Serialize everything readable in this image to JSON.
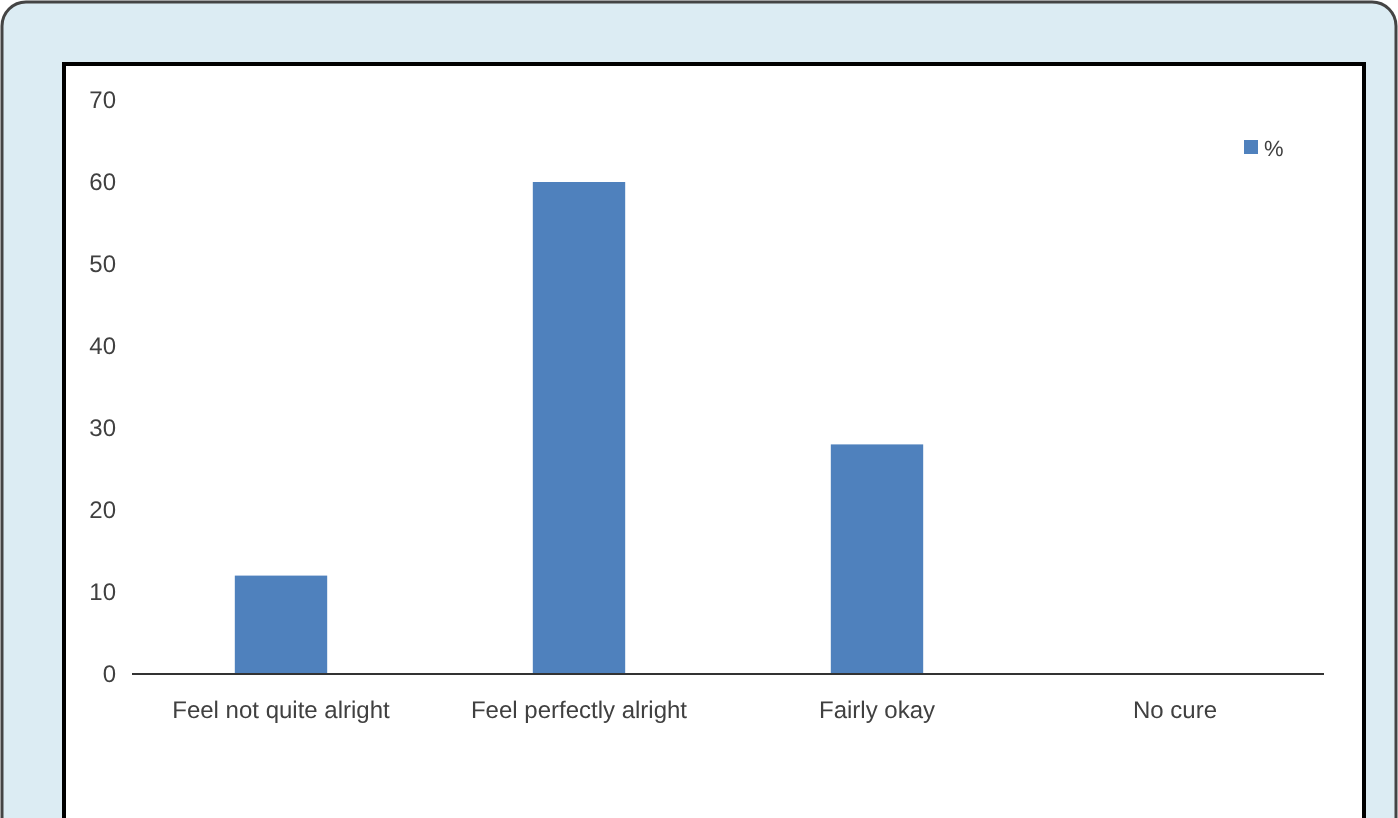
{
  "chart_data": {
    "type": "bar",
    "categories": [
      "Feel not quite alright",
      "Feel perfectly alright",
      "Fairly okay",
      "No cure"
    ],
    "series": [
      {
        "name": "%",
        "color": "#4f81bd",
        "values": [
          12,
          60,
          28,
          0
        ]
      }
    ],
    "ylim": [
      0,
      70
    ],
    "yticks": [
      0,
      10,
      20,
      30,
      40,
      50,
      60,
      70
    ],
    "grid": false,
    "legend": "top right"
  }
}
